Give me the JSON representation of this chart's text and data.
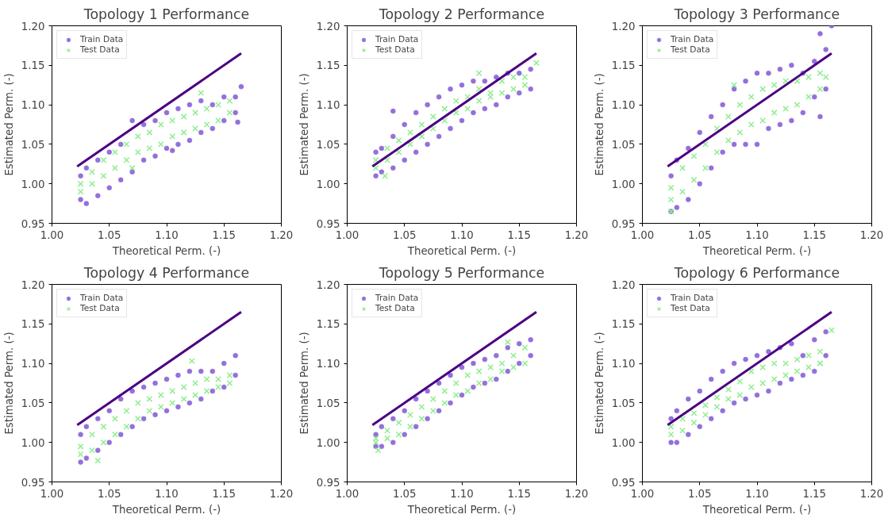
{
  "chart_data": [
    {
      "type": "scatter",
      "title": "Topology 1 Performance",
      "xlabel": "Theoretical Perm. (-)",
      "ylabel": "Estimated Perm. (-)",
      "xlim": [
        1.0,
        1.2
      ],
      "ylim": [
        0.95,
        1.2
      ],
      "xticks": [
        {
          "value": 1.0,
          "label": "1.00"
        },
        {
          "value": 1.05,
          "label": "1.05"
        },
        {
          "value": 1.1,
          "label": "1.10"
        },
        {
          "value": 1.15,
          "label": "1.15"
        },
        {
          "value": 1.2,
          "label": "1.20"
        }
      ],
      "yticks": [
        {
          "value": 0.95,
          "label": "0.95"
        },
        {
          "value": 1.0,
          "label": "1.00"
        },
        {
          "value": 1.05,
          "label": "1.05"
        },
        {
          "value": 1.1,
          "label": "1.10"
        },
        {
          "value": 1.15,
          "label": "1.15"
        },
        {
          "value": 1.2,
          "label": "1.20"
        }
      ],
      "grid": false,
      "legend": "top left",
      "series": [
        {
          "name": "Train Data",
          "color": "#9370db",
          "marker": "circle",
          "x": [
            1.025,
            1.025,
            1.03,
            1.03,
            1.04,
            1.04,
            1.05,
            1.05,
            1.06,
            1.06,
            1.07,
            1.07,
            1.08,
            1.08,
            1.09,
            1.09,
            1.1,
            1.1,
            1.11,
            1.11,
            1.12,
            1.12,
            1.13,
            1.13,
            1.14,
            1.14,
            1.15,
            1.15,
            1.16,
            1.16,
            1.165,
            1.162,
            1.105
          ],
          "values": [
            0.98,
            1.01,
            0.975,
            1.02,
            0.985,
            1.03,
            0.995,
            1.04,
            1.005,
            1.05,
            1.015,
            1.08,
            1.03,
            1.075,
            1.035,
            1.08,
            1.045,
            1.09,
            1.05,
            1.095,
            1.055,
            1.1,
            1.065,
            1.105,
            1.07,
            1.1,
            1.08,
            1.11,
            1.09,
            1.11,
            1.123,
            1.078,
            1.042
          ]
        },
        {
          "name": "Test Data",
          "color": "#90ee90",
          "marker": "cross",
          "x": [
            1.025,
            1.025,
            1.035,
            1.035,
            1.045,
            1.045,
            1.055,
            1.055,
            1.065,
            1.065,
            1.075,
            1.075,
            1.085,
            1.085,
            1.095,
            1.095,
            1.105,
            1.105,
            1.115,
            1.115,
            1.125,
            1.125,
            1.135,
            1.135,
            1.145,
            1.145,
            1.155,
            1.155,
            1.13,
            1.07
          ],
          "values": [
            0.99,
            1.0,
            1.0,
            1.015,
            1.01,
            1.03,
            1.02,
            1.04,
            1.03,
            1.05,
            1.04,
            1.06,
            1.045,
            1.065,
            1.05,
            1.075,
            1.06,
            1.08,
            1.065,
            1.085,
            1.07,
            1.09,
            1.075,
            1.095,
            1.08,
            1.1,
            1.09,
            1.105,
            1.115,
            1.02
          ]
        },
        {
          "type": "line",
          "color": "#4b0082",
          "x": [
            1.022,
            1.165
          ],
          "values": [
            1.022,
            1.165
          ]
        }
      ]
    },
    {
      "type": "scatter",
      "title": "Topology 2 Performance",
      "xlabel": "Theoretical Perm. (-)",
      "ylabel": "Estimated Perm. (-)",
      "xlim": [
        1.0,
        1.2
      ],
      "ylim": [
        0.95,
        1.2
      ],
      "xticks": [
        {
          "value": 1.0,
          "label": "1.00"
        },
        {
          "value": 1.05,
          "label": "1.05"
        },
        {
          "value": 1.1,
          "label": "1.10"
        },
        {
          "value": 1.15,
          "label": "1.15"
        },
        {
          "value": 1.2,
          "label": "1.20"
        }
      ],
      "yticks": [
        {
          "value": 0.95,
          "label": "0.95"
        },
        {
          "value": 1.0,
          "label": "1.00"
        },
        {
          "value": 1.05,
          "label": "1.05"
        },
        {
          "value": 1.1,
          "label": "1.10"
        },
        {
          "value": 1.15,
          "label": "1.15"
        },
        {
          "value": 1.2,
          "label": "1.20"
        }
      ],
      "grid": false,
      "legend": "top left",
      "series": [
        {
          "name": "Train Data",
          "color": "#9370db",
          "marker": "circle",
          "x": [
            1.025,
            1.025,
            1.03,
            1.03,
            1.04,
            1.04,
            1.05,
            1.05,
            1.06,
            1.06,
            1.07,
            1.07,
            1.08,
            1.08,
            1.09,
            1.09,
            1.1,
            1.1,
            1.11,
            1.11,
            1.12,
            1.12,
            1.13,
            1.13,
            1.14,
            1.14,
            1.15,
            1.15,
            1.16,
            1.16,
            1.04
          ],
          "values": [
            1.01,
            1.04,
            1.015,
            1.045,
            1.02,
            1.06,
            1.03,
            1.075,
            1.04,
            1.09,
            1.05,
            1.1,
            1.06,
            1.11,
            1.07,
            1.12,
            1.08,
            1.125,
            1.09,
            1.13,
            1.095,
            1.13,
            1.1,
            1.135,
            1.11,
            1.14,
            1.115,
            1.14,
            1.12,
            1.145,
            1.092
          ]
        },
        {
          "name": "Test Data",
          "color": "#90ee90",
          "marker": "cross",
          "x": [
            1.025,
            1.025,
            1.035,
            1.035,
            1.045,
            1.045,
            1.055,
            1.055,
            1.065,
            1.065,
            1.075,
            1.075,
            1.085,
            1.085,
            1.095,
            1.095,
            1.105,
            1.105,
            1.115,
            1.115,
            1.125,
            1.125,
            1.135,
            1.135,
            1.145,
            1.145,
            1.155,
            1.155,
            1.165,
            1.115,
            1.033
          ],
          "values": [
            1.02,
            1.03,
            1.03,
            1.045,
            1.04,
            1.055,
            1.05,
            1.065,
            1.06,
            1.075,
            1.07,
            1.085,
            1.08,
            1.095,
            1.09,
            1.105,
            1.095,
            1.11,
            1.105,
            1.12,
            1.11,
            1.115,
            1.115,
            1.13,
            1.12,
            1.135,
            1.125,
            1.135,
            1.153,
            1.14,
            1.01
          ]
        },
        {
          "type": "line",
          "color": "#4b0082",
          "x": [
            1.022,
            1.165
          ],
          "values": [
            1.022,
            1.165
          ]
        }
      ]
    },
    {
      "type": "scatter",
      "title": "Topology 3 Performance",
      "xlabel": "Theoretical Perm. (-)",
      "ylabel": "Estimated Perm. (-)",
      "xlim": [
        1.0,
        1.2
      ],
      "ylim": [
        0.95,
        1.2
      ],
      "xticks": [
        {
          "value": 1.0,
          "label": "1.00"
        },
        {
          "value": 1.05,
          "label": "1.05"
        },
        {
          "value": 1.1,
          "label": "1.10"
        },
        {
          "value": 1.15,
          "label": "1.15"
        },
        {
          "value": 1.2,
          "label": "1.20"
        }
      ],
      "yticks": [
        {
          "value": 0.95,
          "label": "0.95"
        },
        {
          "value": 1.0,
          "label": "1.00"
        },
        {
          "value": 1.05,
          "label": "1.05"
        },
        {
          "value": 1.1,
          "label": "1.10"
        },
        {
          "value": 1.15,
          "label": "1.15"
        },
        {
          "value": 1.2,
          "label": "1.20"
        }
      ],
      "grid": false,
      "legend": "top left",
      "series": [
        {
          "name": "Train Data",
          "color": "#9370db",
          "marker": "circle",
          "x": [
            1.025,
            1.025,
            1.03,
            1.03,
            1.04,
            1.04,
            1.05,
            1.05,
            1.06,
            1.06,
            1.07,
            1.07,
            1.08,
            1.08,
            1.09,
            1.09,
            1.1,
            1.1,
            1.11,
            1.11,
            1.12,
            1.12,
            1.13,
            1.13,
            1.14,
            1.14,
            1.15,
            1.15,
            1.16,
            1.16,
            1.165,
            1.155,
            1.155
          ],
          "values": [
            0.965,
            1.01,
            0.97,
            1.03,
            0.98,
            1.045,
            1.0,
            1.065,
            1.02,
            1.085,
            1.04,
            1.1,
            1.05,
            1.12,
            1.05,
            1.13,
            1.05,
            1.14,
            1.07,
            1.14,
            1.075,
            1.145,
            1.08,
            1.15,
            1.09,
            1.14,
            1.11,
            1.155,
            1.12,
            1.17,
            1.2,
            1.19,
            1.085
          ]
        },
        {
          "name": "Test Data",
          "color": "#90ee90",
          "marker": "cross",
          "x": [
            1.025,
            1.025,
            1.035,
            1.035,
            1.045,
            1.045,
            1.055,
            1.055,
            1.065,
            1.065,
            1.075,
            1.075,
            1.085,
            1.085,
            1.095,
            1.095,
            1.105,
            1.105,
            1.115,
            1.115,
            1.125,
            1.125,
            1.135,
            1.135,
            1.145,
            1.145,
            1.155,
            1.155,
            1.16,
            1.025,
            1.08
          ],
          "values": [
            0.98,
            0.995,
            0.99,
            1.02,
            1.005,
            1.035,
            1.02,
            1.05,
            1.04,
            1.07,
            1.055,
            1.085,
            1.065,
            1.1,
            1.075,
            1.11,
            1.08,
            1.12,
            1.09,
            1.125,
            1.095,
            1.13,
            1.1,
            1.13,
            1.11,
            1.135,
            1.12,
            1.14,
            1.135,
            0.965,
            1.125
          ]
        },
        {
          "type": "line",
          "color": "#4b0082",
          "x": [
            1.022,
            1.165
          ],
          "values": [
            1.022,
            1.165
          ]
        }
      ]
    },
    {
      "type": "scatter",
      "title": "Topology 4 Performance",
      "xlabel": "Theoretical Perm. (-)",
      "ylabel": "Estimated Perm. (-)",
      "xlim": [
        1.0,
        1.2
      ],
      "ylim": [
        0.95,
        1.2
      ],
      "xticks": [
        {
          "value": 1.0,
          "label": "1.00"
        },
        {
          "value": 1.05,
          "label": "1.05"
        },
        {
          "value": 1.1,
          "label": "1.10"
        },
        {
          "value": 1.15,
          "label": "1.15"
        },
        {
          "value": 1.2,
          "label": "1.20"
        }
      ],
      "yticks": [
        {
          "value": 0.95,
          "label": "0.95"
        },
        {
          "value": 1.0,
          "label": "1.00"
        },
        {
          "value": 1.05,
          "label": "1.05"
        },
        {
          "value": 1.1,
          "label": "1.10"
        },
        {
          "value": 1.15,
          "label": "1.15"
        },
        {
          "value": 1.2,
          "label": "1.20"
        }
      ],
      "grid": false,
      "legend": "top left",
      "series": [
        {
          "name": "Train Data",
          "color": "#9370db",
          "marker": "circle",
          "x": [
            1.025,
            1.025,
            1.03,
            1.03,
            1.04,
            1.04,
            1.05,
            1.05,
            1.06,
            1.06,
            1.07,
            1.07,
            1.08,
            1.08,
            1.09,
            1.09,
            1.1,
            1.1,
            1.11,
            1.11,
            1.12,
            1.12,
            1.13,
            1.13,
            1.14,
            1.14,
            1.15,
            1.15,
            1.16,
            1.16
          ],
          "values": [
            0.975,
            1.01,
            0.98,
            1.02,
            0.99,
            1.03,
            1.0,
            1.04,
            1.01,
            1.055,
            1.02,
            1.065,
            1.03,
            1.07,
            1.035,
            1.075,
            1.04,
            1.08,
            1.045,
            1.085,
            1.05,
            1.09,
            1.055,
            1.09,
            1.065,
            1.09,
            1.07,
            1.1,
            1.085,
            1.11
          ]
        },
        {
          "name": "Test Data",
          "color": "#90ee90",
          "marker": "cross",
          "x": [
            1.025,
            1.025,
            1.035,
            1.035,
            1.045,
            1.045,
            1.055,
            1.055,
            1.065,
            1.065,
            1.075,
            1.075,
            1.085,
            1.085,
            1.095,
            1.095,
            1.105,
            1.105,
            1.115,
            1.115,
            1.125,
            1.125,
            1.135,
            1.135,
            1.145,
            1.145,
            1.155,
            1.155,
            1.122,
            1.04
          ],
          "values": [
            0.985,
            0.995,
            0.99,
            1.01,
            1.0,
            1.02,
            1.01,
            1.03,
            1.02,
            1.04,
            1.03,
            1.05,
            1.04,
            1.055,
            1.045,
            1.06,
            1.05,
            1.065,
            1.055,
            1.07,
            1.06,
            1.075,
            1.065,
            1.08,
            1.07,
            1.08,
            1.075,
            1.085,
            1.103,
            0.977
          ]
        },
        {
          "type": "line",
          "color": "#4b0082",
          "x": [
            1.022,
            1.165
          ],
          "values": [
            1.022,
            1.165
          ]
        }
      ]
    },
    {
      "type": "scatter",
      "title": "Topology 5 Performance",
      "xlabel": "Theoretical Perm. (-)",
      "ylabel": "Estimated Perm. (-)",
      "xlim": [
        1.0,
        1.2
      ],
      "ylim": [
        0.95,
        1.2
      ],
      "xticks": [
        {
          "value": 1.0,
          "label": "1.00"
        },
        {
          "value": 1.05,
          "label": "1.05"
        },
        {
          "value": 1.1,
          "label": "1.10"
        },
        {
          "value": 1.15,
          "label": "1.15"
        },
        {
          "value": 1.2,
          "label": "1.20"
        }
      ],
      "yticks": [
        {
          "value": 0.95,
          "label": "0.95"
        },
        {
          "value": 1.0,
          "label": "1.00"
        },
        {
          "value": 1.05,
          "label": "1.05"
        },
        {
          "value": 1.1,
          "label": "1.10"
        },
        {
          "value": 1.15,
          "label": "1.15"
        },
        {
          "value": 1.2,
          "label": "1.20"
        }
      ],
      "grid": false,
      "legend": "top left",
      "series": [
        {
          "name": "Train Data",
          "color": "#9370db",
          "marker": "circle",
          "x": [
            1.025,
            1.025,
            1.03,
            1.03,
            1.04,
            1.04,
            1.05,
            1.05,
            1.06,
            1.06,
            1.07,
            1.07,
            1.08,
            1.08,
            1.09,
            1.09,
            1.1,
            1.1,
            1.11,
            1.11,
            1.12,
            1.12,
            1.13,
            1.13,
            1.14,
            1.14,
            1.15,
            1.15,
            1.16,
            1.16
          ],
          "values": [
            0.995,
            1.01,
            0.995,
            1.02,
            1.0,
            1.03,
            1.01,
            1.04,
            1.02,
            1.055,
            1.03,
            1.065,
            1.04,
            1.075,
            1.05,
            1.085,
            1.06,
            1.095,
            1.07,
            1.1,
            1.075,
            1.105,
            1.08,
            1.11,
            1.09,
            1.12,
            1.1,
            1.125,
            1.11,
            1.13
          ]
        },
        {
          "name": "Test Data",
          "color": "#90ee90",
          "marker": "cross",
          "x": [
            1.025,
            1.025,
            1.035,
            1.035,
            1.045,
            1.045,
            1.055,
            1.055,
            1.065,
            1.065,
            1.075,
            1.075,
            1.085,
            1.085,
            1.095,
            1.095,
            1.105,
            1.105,
            1.115,
            1.115,
            1.125,
            1.125,
            1.135,
            1.135,
            1.145,
            1.145,
            1.155,
            1.155,
            1.027,
            1.14
          ],
          "values": [
            1.0,
            1.005,
            1.005,
            1.015,
            1.01,
            1.025,
            1.02,
            1.035,
            1.03,
            1.045,
            1.04,
            1.055,
            1.05,
            1.065,
            1.06,
            1.075,
            1.065,
            1.085,
            1.075,
            1.09,
            1.08,
            1.095,
            1.09,
            1.1,
            1.095,
            1.11,
            1.1,
            1.12,
            0.99,
            1.127
          ]
        },
        {
          "type": "line",
          "color": "#4b0082",
          "x": [
            1.022,
            1.165
          ],
          "values": [
            1.022,
            1.165
          ]
        }
      ]
    },
    {
      "type": "scatter",
      "title": "Topology 6 Performance",
      "xlabel": "Theoretical Perm. (-)",
      "ylabel": "Estimated Perm. (-)",
      "xlim": [
        1.0,
        1.2
      ],
      "ylim": [
        0.95,
        1.2
      ],
      "xticks": [
        {
          "value": 1.0,
          "label": "1.00"
        },
        {
          "value": 1.05,
          "label": "1.05"
        },
        {
          "value": 1.1,
          "label": "1.10"
        },
        {
          "value": 1.15,
          "label": "1.15"
        },
        {
          "value": 1.2,
          "label": "1.20"
        }
      ],
      "yticks": [
        {
          "value": 0.95,
          "label": "0.95"
        },
        {
          "value": 1.0,
          "label": "1.00"
        },
        {
          "value": 1.05,
          "label": "1.05"
        },
        {
          "value": 1.1,
          "label": "1.10"
        },
        {
          "value": 1.15,
          "label": "1.15"
        },
        {
          "value": 1.2,
          "label": "1.20"
        }
      ],
      "grid": false,
      "legend": "top left",
      "series": [
        {
          "name": "Train Data",
          "color": "#9370db",
          "marker": "circle",
          "x": [
            1.025,
            1.025,
            1.03,
            1.03,
            1.04,
            1.04,
            1.05,
            1.05,
            1.06,
            1.06,
            1.07,
            1.07,
            1.08,
            1.08,
            1.09,
            1.09,
            1.1,
            1.1,
            1.11,
            1.11,
            1.12,
            1.12,
            1.13,
            1.13,
            1.14,
            1.14,
            1.15,
            1.15,
            1.16,
            1.16
          ],
          "values": [
            1.0,
            1.03,
            1.0,
            1.04,
            1.01,
            1.055,
            1.02,
            1.065,
            1.03,
            1.08,
            1.04,
            1.09,
            1.05,
            1.1,
            1.055,
            1.105,
            1.06,
            1.11,
            1.065,
            1.115,
            1.075,
            1.12,
            1.08,
            1.125,
            1.085,
            1.11,
            1.09,
            1.13,
            1.11,
            1.14
          ]
        },
        {
          "name": "Test Data",
          "color": "#90ee90",
          "marker": "cross",
          "x": [
            1.025,
            1.025,
            1.035,
            1.035,
            1.045,
            1.045,
            1.055,
            1.055,
            1.065,
            1.065,
            1.075,
            1.075,
            1.085,
            1.085,
            1.095,
            1.095,
            1.105,
            1.105,
            1.115,
            1.115,
            1.125,
            1.125,
            1.135,
            1.135,
            1.145,
            1.145,
            1.155,
            1.155,
            1.165,
            1.155
          ],
          "values": [
            1.01,
            1.02,
            1.015,
            1.03,
            1.025,
            1.037,
            1.035,
            1.047,
            1.045,
            1.057,
            1.055,
            1.067,
            1.06,
            1.077,
            1.07,
            1.09,
            1.075,
            1.095,
            1.08,
            1.1,
            1.085,
            1.1,
            1.09,
            1.105,
            1.095,
            1.11,
            1.1,
            1.115,
            1.142,
            1.1
          ]
        },
        {
          "type": "line",
          "color": "#4b0082",
          "x": [
            1.022,
            1.165
          ],
          "values": [
            1.022,
            1.165
          ]
        }
      ]
    }
  ]
}
